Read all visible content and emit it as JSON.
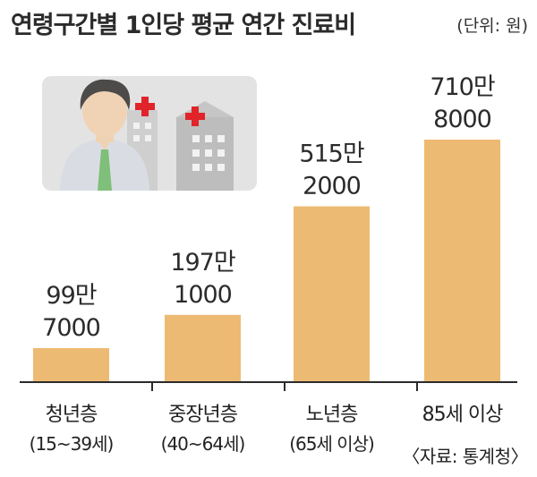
{
  "header": {
    "title": "연령구간별 1인당 평균 연간 진료비",
    "unit": "(단위: 원)"
  },
  "source": "〈자료: 통계청〉",
  "colors": {
    "bar": "#EDBA73",
    "axis": "#2b2b2b",
    "illustration_bg": "#E3E3E3",
    "cross": "#E0242A"
  },
  "illustration": {
    "icons": [
      "person-icon",
      "hospital-icon",
      "red-cross-icon"
    ]
  },
  "chart_data": {
    "type": "bar",
    "categories": [
      {
        "line1": "청년층",
        "line2": "(15~39세)"
      },
      {
        "line1": "중장년층",
        "line2": "(40~64세)"
      },
      {
        "line1": "노년층",
        "line2": "(65세 이상)"
      },
      {
        "line1": "85세 이상",
        "line2": ""
      }
    ],
    "values": [
      997000,
      1971000,
      5152000,
      7108000
    ],
    "value_labels": [
      {
        "line1": "99만",
        "line2": "7000"
      },
      {
        "line1": "197만",
        "line2": "1000"
      },
      {
        "line1": "515만",
        "line2": "2000"
      },
      {
        "line1": "710만",
        "line2": "8000"
      }
    ],
    "ylim": [
      0,
      8000000
    ],
    "grid": false,
    "legend": "none",
    "title": "연령구간별 1인당 평균 연간 진료비",
    "xlabel": "",
    "ylabel": ""
  }
}
